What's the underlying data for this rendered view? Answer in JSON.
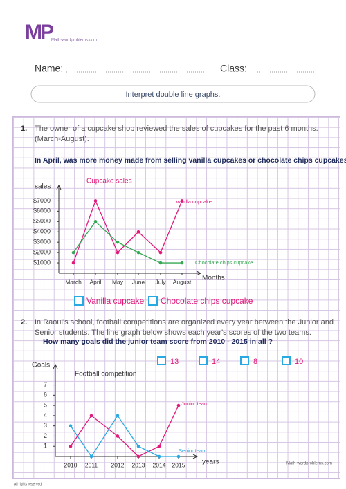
{
  "header": {
    "logo": "MP",
    "brand": "Math-wordproblems.com",
    "name_label": "Name:",
    "class_label": "Class:"
  },
  "title": "Interpret double line graphs.",
  "questions": [
    {
      "number": "1.",
      "text": "The owner of a cupcake shop reviewed the sales of cupcakes for the past 6 months. (March-August).",
      "question": "In April, was more money made from selling vanilla cupcakes or chocolate chips cupcakes?",
      "options": [
        "Vanilla cupcake",
        "Chocolate chips cupcake"
      ]
    },
    {
      "number": "2.",
      "text": "In Raoul's school, football competitions are organized every year between the Junior and Senior students. The line graph below shows each year's scores of the two teams.",
      "question": "How many goals did the junior team score from 2010 - 2015 in all ?",
      "options": [
        13,
        14,
        8,
        10
      ]
    }
  ],
  "chart_data": [
    {
      "type": "line",
      "title": "Cupcake sales",
      "y_label": "sales",
      "x_label": "Months",
      "categories": [
        "March",
        "April",
        "May",
        "June",
        "July",
        "August"
      ],
      "series": [
        {
          "name": "Vanilla cupcake",
          "color": "#e0197a",
          "values": [
            1000,
            7000,
            2000,
            4000,
            2000,
            7000
          ]
        },
        {
          "name": "Chocolate chips cupcake",
          "color": "#35a853",
          "values": [
            2000,
            5000,
            3000,
            2000,
            1000,
            1000
          ]
        }
      ],
      "ylim": [
        0,
        8500
      ],
      "yticks": [
        {
          "value": 1000,
          "label": "$1000"
        },
        {
          "value": 2000,
          "label": "$2000"
        },
        {
          "value": 3000,
          "label": "$3000"
        },
        {
          "value": 4000,
          "label": "$4000"
        },
        {
          "value": 5000,
          "label": "$5000"
        },
        {
          "value": 6000,
          "label": "$6000"
        },
        {
          "value": 7000,
          "label": "$7000"
        }
      ],
      "grid": false
    },
    {
      "type": "line",
      "title": "Football competition",
      "y_label": "Goals",
      "x_label": "years",
      "categories": [
        "2010",
        "2011",
        "2012",
        "2013",
        "2014",
        "2015"
      ],
      "series": [
        {
          "name": "Junior team",
          "color": "#e0197a",
          "values": [
            1,
            4,
            2,
            0,
            1,
            5
          ]
        },
        {
          "name": "Senior team",
          "color": "#29a9e1",
          "values": [
            3,
            0,
            4,
            1,
            0,
            0
          ]
        }
      ],
      "ylim": [
        0,
        9
      ],
      "yticks": [
        1,
        2,
        3,
        4,
        5,
        6,
        7
      ],
      "grid": false
    }
  ],
  "footer": {
    "rights": "All rights reserved",
    "brand": "Math-wordproblems.com"
  }
}
